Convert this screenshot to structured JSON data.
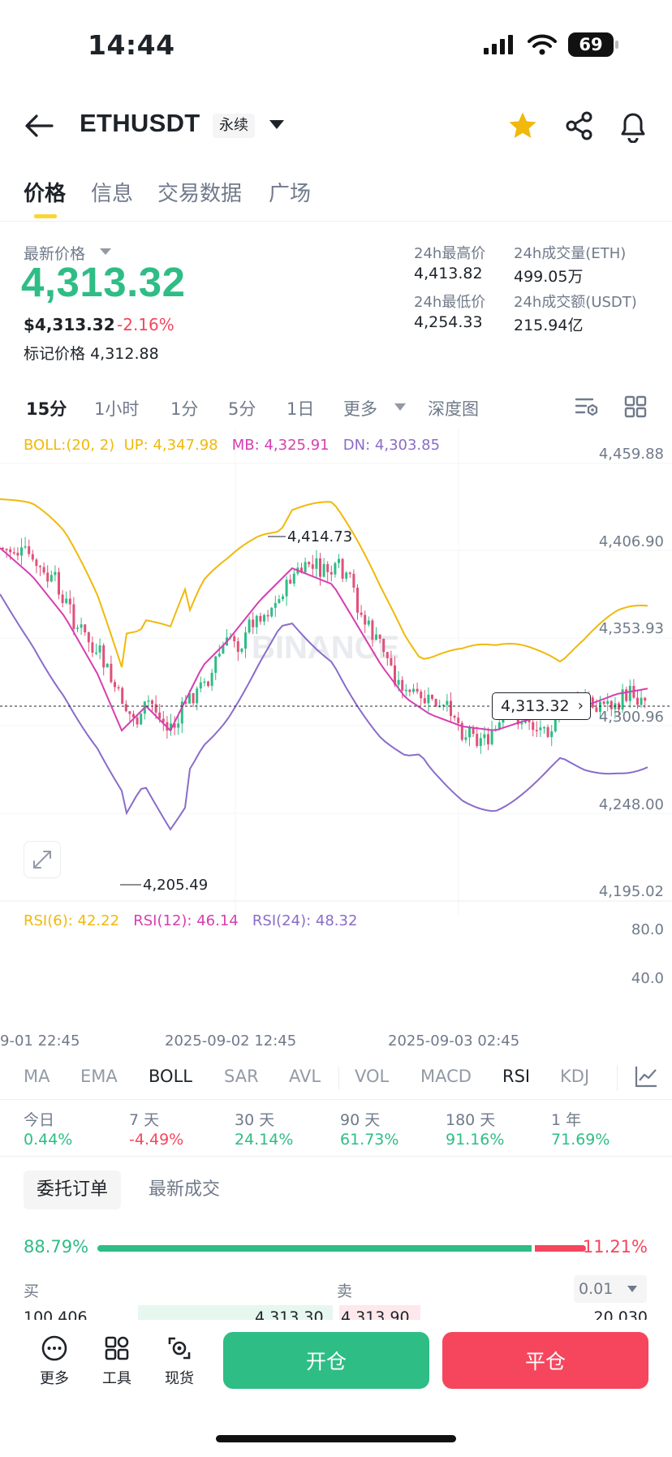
{
  "status_bar": {
    "time": "14:44",
    "battery": "69"
  },
  "header": {
    "symbol": "ETHUSDT",
    "contract_type": "永续"
  },
  "tabs": [
    "价格",
    "信息",
    "交易数据",
    "广场"
  ],
  "price": {
    "last_label": "最新价格",
    "last": "4,313.32",
    "usd": "$4,313.32",
    "change": "-2.16%",
    "mark_label": "标记价格",
    "mark": "4,312.88"
  },
  "stats": {
    "high_label": "24h最高价",
    "high": "4,413.82",
    "low_label": "24h最低价",
    "low": "4,254.33",
    "vol_label": "24h成交量(ETH)",
    "vol": "499.05万",
    "turnover_label": "24h成交额(USDT)",
    "turnover": "215.94亿"
  },
  "intervals": [
    "15分",
    "1小时",
    "1分",
    "5分",
    "1日",
    "更多",
    "深度图"
  ],
  "boll_legend": {
    "name": "BOLL:(20, 2)",
    "up": "UP: 4,347.98",
    "mb": "MB: 4,325.91",
    "dn": "DN: 4,303.85"
  },
  "rsi_legend": {
    "rsi6": "RSI(6): 42.22",
    "rsi12": "RSI(12): 46.14",
    "rsi24": "RSI(24): 48.32"
  },
  "chart": {
    "watermark": "BINANCE",
    "high_marker": "4,414.73",
    "low_marker": "4,205.49",
    "current_price_tag": "4,313.32",
    "y_labels": [
      "4,459.88",
      "4,406.90",
      "4,353.93",
      "4,300.96",
      "4,248.00",
      "4,195.02"
    ],
    "rsi_y_labels": [
      "80.0",
      "40.0"
    ],
    "x_labels": [
      "9-01 22:45",
      "2025-09-02 12:45",
      "2025-09-03 02:45"
    ],
    "colors": {
      "up": "#2ebd85",
      "down": "#e0517a",
      "boll_up": "#f0b90b",
      "boll_mb": "#d63fb0",
      "boll_dn": "#8a6cc9"
    }
  },
  "indicators": [
    "MA",
    "EMA",
    "BOLL",
    "SAR",
    "AVL",
    "VOL",
    "MACD",
    "RSI",
    "KDJ"
  ],
  "performance": [
    {
      "label": "今日",
      "value": "0.44%"
    },
    {
      "label": "7 天",
      "value": "-4.49%"
    },
    {
      "label": "30 天",
      "value": "24.14%"
    },
    {
      "label": "90 天",
      "value": "61.73%"
    },
    {
      "label": "180 天",
      "value": "91.16%"
    },
    {
      "label": "1 年",
      "value": "71.69%"
    }
  ],
  "order_tabs": {
    "active": "委托订单",
    "other": "最新成交"
  },
  "order_book": {
    "buy_pct": "88.79%",
    "sell_pct": "11.21%",
    "buy_ratio": 0.8879,
    "buy_label": "买",
    "sell_label": "卖",
    "depth": "0.01",
    "partial_left": "100,406",
    "partial_bid": "4,313.30",
    "partial_ask": "4,313.90",
    "partial_right": "20,030"
  },
  "bottom_bar": {
    "more": "更多",
    "tools": "工具",
    "spot": "现货",
    "open": "开仓",
    "close": "平仓"
  }
}
